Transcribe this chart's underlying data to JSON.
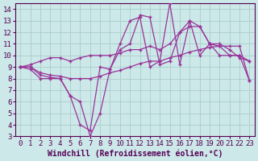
{
  "bg_color": "#cce8e8",
  "grid_color": "#aacccc",
  "line_color": "#993399",
  "xlabel": "Windchill (Refroidissement éolien,°C)",
  "xlim": [
    -0.5,
    23.5
  ],
  "ylim": [
    3,
    14.5
  ],
  "xticks": [
    0,
    1,
    2,
    3,
    4,
    5,
    6,
    7,
    8,
    9,
    10,
    11,
    12,
    13,
    14,
    15,
    16,
    17,
    18,
    19,
    20,
    21,
    22,
    23
  ],
  "yticks": [
    3,
    4,
    5,
    6,
    7,
    8,
    9,
    10,
    11,
    12,
    13,
    14
  ],
  "line1_x": [
    0,
    1,
    2,
    3,
    4,
    5,
    6,
    7,
    8,
    9,
    10,
    11,
    12,
    13,
    14,
    15,
    16,
    17,
    18,
    19,
    20,
    21,
    22,
    23
  ],
  "line1_y": [
    9.0,
    8.8,
    8.0,
    8.0,
    8.0,
    6.5,
    6.0,
    3.0,
    5.0,
    8.8,
    11.0,
    13.0,
    13.3,
    9.0,
    9.5,
    14.5,
    9.2,
    13.0,
    10.0,
    11.0,
    10.0,
    10.0,
    10.0,
    7.8
  ],
  "line2_x": [
    0,
    1,
    2,
    3,
    4,
    5,
    6,
    7,
    8,
    9,
    10,
    11,
    12,
    13,
    14,
    15,
    16,
    17,
    18,
    19,
    20,
    21,
    22,
    23
  ],
  "line2_y": [
    9.0,
    9.0,
    8.3,
    8.1,
    8.0,
    6.5,
    4.0,
    3.5,
    9.0,
    8.8,
    10.5,
    11.0,
    13.5,
    13.3,
    9.2,
    9.5,
    12.0,
    13.0,
    12.5,
    11.0,
    10.8,
    10.0,
    10.0,
    9.5
  ],
  "line3_x": [
    0,
    1,
    2,
    3,
    4,
    5,
    6,
    7,
    8,
    9,
    10,
    11,
    12,
    13,
    14,
    15,
    16,
    17,
    18,
    19,
    20,
    21,
    22,
    23
  ],
  "line3_y": [
    9.0,
    9.0,
    8.5,
    8.3,
    8.2,
    8.0,
    8.0,
    8.0,
    8.2,
    8.5,
    8.7,
    9.0,
    9.3,
    9.5,
    9.5,
    9.8,
    10.0,
    10.3,
    10.5,
    10.7,
    10.8,
    10.8,
    10.8,
    7.8
  ],
  "line4_x": [
    0,
    1,
    2,
    3,
    4,
    5,
    6,
    7,
    8,
    9,
    10,
    11,
    12,
    13,
    14,
    15,
    16,
    17,
    18,
    19,
    20,
    21,
    22,
    23
  ],
  "line4_y": [
    9.0,
    9.2,
    9.5,
    9.8,
    9.8,
    9.5,
    9.8,
    10.0,
    10.0,
    10.0,
    10.2,
    10.5,
    10.5,
    10.8,
    10.5,
    11.0,
    12.0,
    12.5,
    12.5,
    11.0,
    11.0,
    10.5,
    9.8,
    9.5
  ],
  "tick_fontsize": 6.5,
  "label_fontsize": 7,
  "tick_color": "#550055",
  "spine_color": "#550055"
}
